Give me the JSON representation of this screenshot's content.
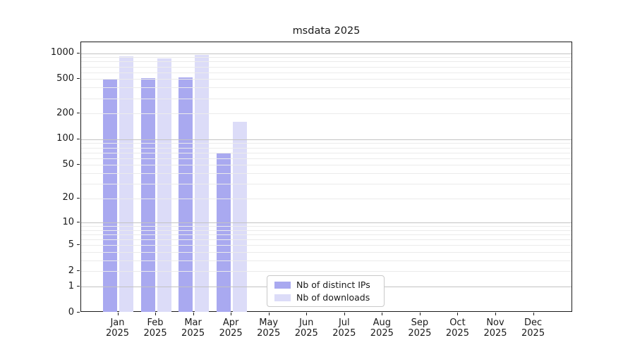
{
  "title": "msdata 2025",
  "chart_data": {
    "type": "bar",
    "categories": [
      "Jan",
      "Feb",
      "Mar",
      "Apr",
      "May",
      "Jun",
      "Jul",
      "Aug",
      "Sep",
      "Oct",
      "Nov",
      "Dec"
    ],
    "year": "2025",
    "series": [
      {
        "name": "Nb of distinct IPs",
        "color": "#a9a9f0",
        "values": [
          490,
          505,
          510,
          68,
          0,
          0,
          0,
          0,
          0,
          0,
          0,
          0
        ]
      },
      {
        "name": "Nb of downloads",
        "color": "#dcdcf8",
        "values": [
          910,
          860,
          945,
          158,
          0,
          0,
          0,
          0,
          0,
          0,
          0,
          0
        ]
      }
    ],
    "title": "msdata 2025",
    "xlabel": "",
    "ylabel": "",
    "yscale": "symlog (position = ln(1+y))",
    "ylim": [
      0,
      1340
    ],
    "yticks_labeled": [
      0,
      1,
      2,
      5,
      10,
      20,
      50,
      100,
      200,
      500,
      1000
    ],
    "yticks_minor": [
      3,
      4,
      6,
      7,
      8,
      9,
      30,
      40,
      60,
      70,
      80,
      90,
      300,
      400,
      600,
      700,
      800,
      900
    ],
    "grid": "horizontal, major darker at 1/10/100/1000, minor lighter, drawn over bars",
    "legend_position": "inside axes, lower center"
  },
  "legend": {
    "items": [
      {
        "label": "Nb of distinct IPs",
        "color": "#a9a9f0"
      },
      {
        "label": "Nb of downloads",
        "color": "#dcdcf8"
      }
    ]
  },
  "colors": {
    "bar_dark": "#a9a9f0",
    "bar_light": "#dcdcf8",
    "grid_major": "#c3c3c3",
    "grid_minor": "#ebebeb",
    "axis": "#1a1a1a",
    "background": "#ffffff"
  }
}
